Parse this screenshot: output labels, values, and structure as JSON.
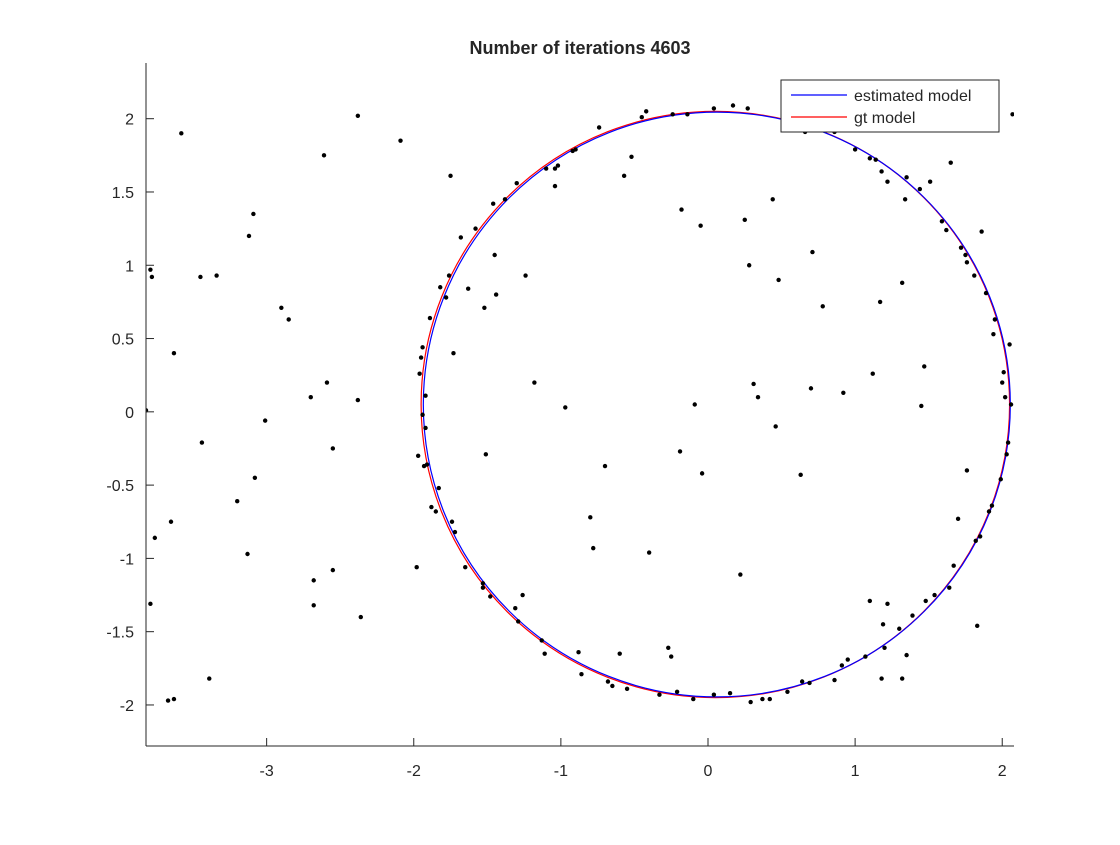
{
  "chart_data": {
    "type": "scatter",
    "title": "Number of iterations 4603",
    "xlabel": "",
    "ylabel": "",
    "xlim": [
      -3.82,
      2.08
    ],
    "ylim": [
      -2.28,
      2.38
    ],
    "xticks": [
      -3,
      -2,
      -1,
      0,
      1,
      2
    ],
    "xtick_labels": [
      "-3",
      "-2",
      "-1",
      "0",
      "1",
      "2"
    ],
    "yticks": [
      -2,
      -1.5,
      -1,
      -0.5,
      0,
      0.5,
      1,
      1.5,
      2
    ],
    "ytick_labels": [
      "-2",
      "-1.5",
      "-1",
      "-0.5",
      "0",
      "0.5",
      "1",
      "1.5",
      "2"
    ],
    "grid": false,
    "legend_position": "top-right",
    "series": [
      {
        "name": "estimated model",
        "kind": "circle",
        "color": "#0000ff",
        "center": [
          0.06,
          0.05
        ],
        "radius": 1.995
      },
      {
        "name": "gt model",
        "kind": "circle",
        "color": "#ff0000",
        "center": [
          0.05,
          0.05
        ],
        "radius": 2.0
      }
    ],
    "points_color": "#000000",
    "points": [
      [
        -3.82,
        0.01
      ],
      [
        -3.79,
        0.97
      ],
      [
        -3.78,
        0.92
      ],
      [
        -3.79,
        -1.31
      ],
      [
        -3.76,
        -0.86
      ],
      [
        -3.67,
        -1.97
      ],
      [
        -3.63,
        -1.96
      ],
      [
        -3.65,
        -0.75
      ],
      [
        -3.63,
        0.4
      ],
      [
        -3.58,
        1.9
      ],
      [
        -3.45,
        0.92
      ],
      [
        -3.44,
        -0.21
      ],
      [
        -3.39,
        -1.82
      ],
      [
        -3.34,
        0.93
      ],
      [
        -3.2,
        -0.61
      ],
      [
        -3.13,
        -0.97
      ],
      [
        -3.12,
        1.2
      ],
      [
        -3.09,
        1.35
      ],
      [
        -3.08,
        -0.45
      ],
      [
        -3.01,
        -0.06
      ],
      [
        -2.9,
        0.71
      ],
      [
        -2.85,
        0.63
      ],
      [
        -2.7,
        0.1
      ],
      [
        -2.68,
        -1.15
      ],
      [
        -2.68,
        -1.32
      ],
      [
        -2.61,
        1.75
      ],
      [
        -2.59,
        0.2
      ],
      [
        -2.55,
        -0.25
      ],
      [
        -2.55,
        -1.08
      ],
      [
        -2.38,
        2.02
      ],
      [
        -2.38,
        0.08
      ],
      [
        -2.36,
        -1.4
      ],
      [
        -2.09,
        1.85
      ],
      [
        -1.98,
        -1.06
      ],
      [
        -1.97,
        -0.3
      ],
      [
        -1.96,
        0.26
      ],
      [
        -1.95,
        0.37
      ],
      [
        -1.94,
        -0.02
      ],
      [
        -1.94,
        0.44
      ],
      [
        -1.93,
        -0.37
      ],
      [
        -1.92,
        0.11
      ],
      [
        -1.92,
        -0.11
      ],
      [
        -1.91,
        -0.36
      ],
      [
        -1.89,
        0.64
      ],
      [
        -1.88,
        -0.65
      ],
      [
        -1.85,
        -0.68
      ],
      [
        -1.83,
        -0.52
      ],
      [
        -1.82,
        0.85
      ],
      [
        -1.78,
        0.78
      ],
      [
        -1.76,
        0.93
      ],
      [
        -1.75,
        1.61
      ],
      [
        -1.74,
        -0.75
      ],
      [
        -1.73,
        0.4
      ],
      [
        -1.72,
        -0.82
      ],
      [
        -1.68,
        1.19
      ],
      [
        -1.65,
        -1.06
      ],
      [
        -1.63,
        0.84
      ],
      [
        -1.58,
        1.25
      ],
      [
        -1.53,
        -1.2
      ],
      [
        -1.53,
        -1.17
      ],
      [
        -1.52,
        0.71
      ],
      [
        -1.51,
        -0.29
      ],
      [
        -1.48,
        -1.26
      ],
      [
        -1.46,
        1.42
      ],
      [
        -1.45,
        1.07
      ],
      [
        -1.44,
        0.8
      ],
      [
        -1.38,
        1.45
      ],
      [
        -1.31,
        -1.34
      ],
      [
        -1.3,
        1.56
      ],
      [
        -1.29,
        -1.43
      ],
      [
        -1.26,
        -1.25
      ],
      [
        -1.24,
        0.93
      ],
      [
        -1.18,
        0.2
      ],
      [
        -1.13,
        -1.56
      ],
      [
        -1.11,
        -1.65
      ],
      [
        -1.1,
        1.66
      ],
      [
        -1.04,
        1.66
      ],
      [
        -1.04,
        1.54
      ],
      [
        -1.02,
        1.68
      ],
      [
        -0.97,
        0.03
      ],
      [
        -0.92,
        1.78
      ],
      [
        -0.9,
        1.79
      ],
      [
        -0.88,
        -1.64
      ],
      [
        -0.86,
        -1.79
      ],
      [
        -0.8,
        -0.72
      ],
      [
        -0.78,
        -0.93
      ],
      [
        -0.74,
        1.94
      ],
      [
        -0.7,
        -0.37
      ],
      [
        -0.68,
        -1.84
      ],
      [
        -0.65,
        -1.87
      ],
      [
        -0.6,
        -1.65
      ],
      [
        -0.57,
        1.61
      ],
      [
        -0.55,
        -1.89
      ],
      [
        -0.52,
        1.74
      ],
      [
        -0.45,
        2.01
      ],
      [
        -0.42,
        2.05
      ],
      [
        -0.4,
        -0.96
      ],
      [
        -0.33,
        -1.93
      ],
      [
        -0.27,
        -1.61
      ],
      [
        -0.25,
        -1.67
      ],
      [
        -0.24,
        2.03
      ],
      [
        -0.21,
        -1.91
      ],
      [
        -0.19,
        -0.27
      ],
      [
        -0.18,
        1.38
      ],
      [
        -0.14,
        2.03
      ],
      [
        -0.1,
        -1.96
      ],
      [
        -0.09,
        0.05
      ],
      [
        -0.05,
        1.27
      ],
      [
        -0.04,
        -0.42
      ],
      [
        0.04,
        -1.93
      ],
      [
        0.04,
        2.07
      ],
      [
        0.15,
        -1.92
      ],
      [
        0.17,
        2.09
      ],
      [
        0.22,
        -1.11
      ],
      [
        0.25,
        1.31
      ],
      [
        0.27,
        2.07
      ],
      [
        0.28,
        1.0
      ],
      [
        0.29,
        -1.98
      ],
      [
        0.31,
        0.19
      ],
      [
        0.34,
        0.1
      ],
      [
        0.37,
        -1.96
      ],
      [
        0.42,
        -1.96
      ],
      [
        0.44,
        1.45
      ],
      [
        0.46,
        -0.1
      ],
      [
        0.48,
        0.9
      ],
      [
        0.54,
        -1.91
      ],
      [
        0.61,
        2.01
      ],
      [
        0.63,
        -0.43
      ],
      [
        0.64,
        -1.84
      ],
      [
        0.66,
        1.91
      ],
      [
        0.69,
        -1.85
      ],
      [
        0.7,
        0.16
      ],
      [
        0.71,
        1.09
      ],
      [
        0.72,
        2.0
      ],
      [
        0.78,
        0.72
      ],
      [
        0.86,
        1.91
      ],
      [
        0.86,
        -1.83
      ],
      [
        0.91,
        -1.73
      ],
      [
        0.92,
        0.13
      ],
      [
        0.95,
        -1.69
      ],
      [
        1.0,
        1.79
      ],
      [
        1.07,
        -1.67
      ],
      [
        1.1,
        -1.29
      ],
      [
        1.1,
        1.73
      ],
      [
        1.12,
        0.26
      ],
      [
        1.14,
        1.72
      ],
      [
        1.17,
        0.75
      ],
      [
        1.18,
        -1.82
      ],
      [
        1.18,
        1.64
      ],
      [
        1.19,
        -1.45
      ],
      [
        1.2,
        -1.61
      ],
      [
        1.22,
        -1.31
      ],
      [
        1.22,
        1.57
      ],
      [
        1.3,
        -1.48
      ],
      [
        1.32,
        0.88
      ],
      [
        1.32,
        -1.82
      ],
      [
        1.34,
        1.45
      ],
      [
        1.35,
        1.6
      ],
      [
        1.35,
        -1.66
      ],
      [
        1.39,
        -1.39
      ],
      [
        1.44,
        1.52
      ],
      [
        1.45,
        0.04
      ],
      [
        1.47,
        0.31
      ],
      [
        1.48,
        -1.29
      ],
      [
        1.51,
        1.57
      ],
      [
        1.54,
        -1.25
      ],
      [
        1.59,
        1.3
      ],
      [
        1.62,
        1.24
      ],
      [
        1.64,
        -1.2
      ],
      [
        1.65,
        1.7
      ],
      [
        1.67,
        -1.05
      ],
      [
        1.7,
        -0.73
      ],
      [
        1.72,
        1.12
      ],
      [
        1.75,
        1.07
      ],
      [
        1.76,
        -0.4
      ],
      [
        1.76,
        1.02
      ],
      [
        1.81,
        0.93
      ],
      [
        1.82,
        -0.88
      ],
      [
        1.83,
        -1.46
      ],
      [
        1.85,
        -0.85
      ],
      [
        1.86,
        1.23
      ],
      [
        1.89,
        0.81
      ],
      [
        1.91,
        -0.68
      ],
      [
        1.93,
        -0.64
      ],
      [
        1.94,
        0.53
      ],
      [
        1.95,
        0.63
      ],
      [
        1.99,
        -0.46
      ],
      [
        2.0,
        0.2
      ],
      [
        2.01,
        0.27
      ],
      [
        2.02,
        0.1
      ],
      [
        2.03,
        -0.29
      ],
      [
        2.04,
        -0.21
      ],
      [
        2.05,
        0.46
      ],
      [
        2.06,
        0.05
      ],
      [
        2.07,
        2.03
      ]
    ]
  }
}
